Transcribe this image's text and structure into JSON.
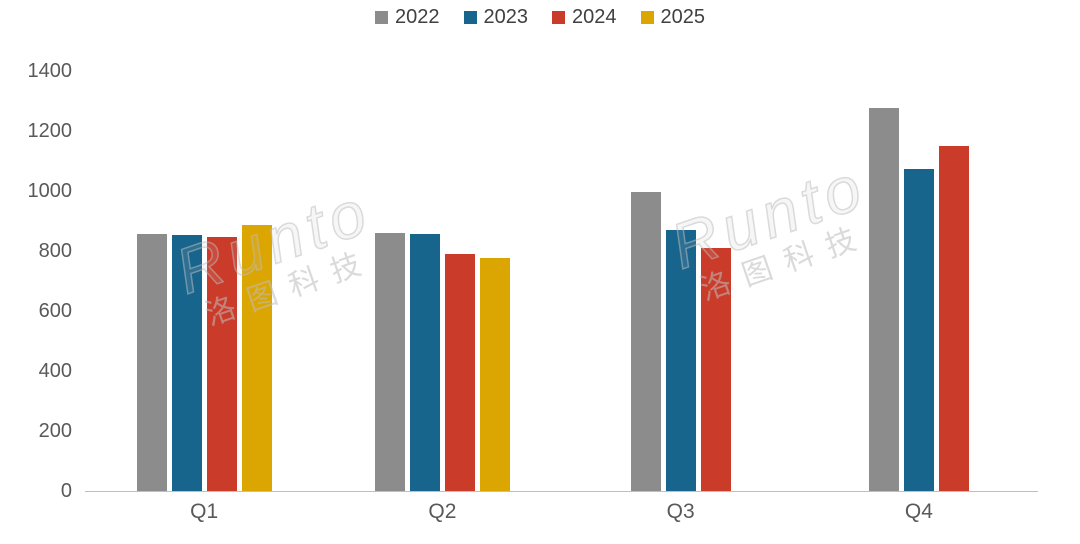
{
  "chart_data": {
    "type": "bar",
    "title": "",
    "categories": [
      "Q1",
      "Q2",
      "Q3",
      "Q4"
    ],
    "series": [
      {
        "name": "2022",
        "color": "#8C8C8C",
        "values": [
          857,
          860,
          997,
          1277
        ]
      },
      {
        "name": "2023",
        "color": "#17648D",
        "values": [
          853,
          857,
          870,
          1073
        ]
      },
      {
        "name": "2024",
        "color": "#CB3B2A",
        "values": [
          847,
          790,
          810,
          1150
        ]
      },
      {
        "name": "2025",
        "color": "#DCA602",
        "values": [
          887,
          777,
          null,
          null
        ]
      }
    ],
    "ylim": [
      0,
      1400
    ],
    "yticks": [
      0,
      200,
      400,
      600,
      800,
      1000,
      1200,
      1400
    ],
    "grid": false,
    "legend_position": "top"
  },
  "watermark": {
    "latin": "Runto",
    "cjk": "洛图科技"
  }
}
